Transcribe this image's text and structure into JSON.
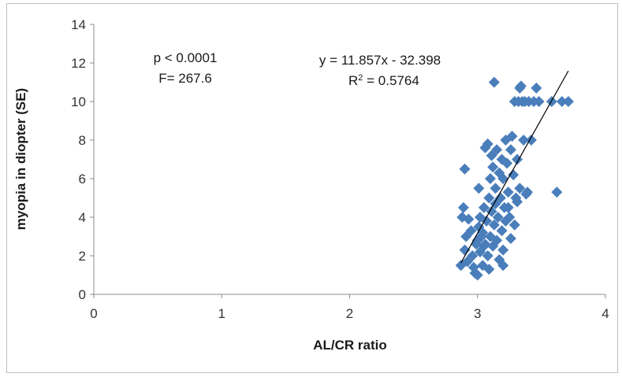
{
  "chart_data": {
    "type": "scatter",
    "title": "",
    "xlabel": "AL/CR ratio",
    "ylabel": "myopia in diopter  (SE)",
    "xlim": [
      0,
      4
    ],
    "ylim": [
      0,
      14
    ],
    "x_ticks": [
      0,
      1,
      2,
      3,
      4
    ],
    "y_ticks": [
      0,
      2,
      4,
      6,
      8,
      10,
      12,
      14
    ],
    "grid": false,
    "legend": "none",
    "marker": "diamond",
    "marker_color": "#4a7ebb",
    "trendline": {
      "slope": 11.857,
      "intercept": -32.398,
      "x_range": [
        2.87,
        3.71
      ],
      "color": "#000000"
    },
    "annotations": {
      "stats_line1": "p < 0.0001",
      "stats_line2": "F= 267.6",
      "equation": "y = 11.857x - 32.398",
      "r2_prefix": "R",
      "r2_sup": "2",
      "r2_suffix": " = 0.5764"
    },
    "points": [
      [
        2.87,
        1.5
      ],
      [
        2.88,
        4.0
      ],
      [
        2.89,
        4.5
      ],
      [
        2.9,
        6.5
      ],
      [
        2.9,
        2.3
      ],
      [
        2.91,
        3.0
      ],
      [
        2.92,
        1.7
      ],
      [
        2.93,
        3.9
      ],
      [
        2.95,
        3.3
      ],
      [
        2.96,
        2.0
      ],
      [
        2.97,
        1.4
      ],
      [
        2.98,
        1.1
      ],
      [
        2.99,
        2.6
      ],
      [
        3.0,
        1.0
      ],
      [
        3.01,
        5.5
      ],
      [
        3.01,
        3.5
      ],
      [
        3.02,
        4.0
      ],
      [
        3.02,
        2.2
      ],
      [
        3.03,
        3.0
      ],
      [
        3.04,
        1.5
      ],
      [
        3.05,
        2.5
      ],
      [
        3.05,
        4.5
      ],
      [
        3.06,
        7.6
      ],
      [
        3.07,
        3.8
      ],
      [
        3.08,
        2.0
      ],
      [
        3.08,
        7.8
      ],
      [
        3.09,
        1.3
      ],
      [
        3.09,
        5.0
      ],
      [
        3.1,
        6.0
      ],
      [
        3.1,
        3.0
      ],
      [
        3.11,
        4.3
      ],
      [
        3.11,
        7.2
      ],
      [
        3.12,
        2.5
      ],
      [
        3.12,
        6.6
      ],
      [
        3.13,
        11.0
      ],
      [
        3.13,
        3.6
      ],
      [
        3.14,
        5.5
      ],
      [
        3.15,
        7.5
      ],
      [
        3.15,
        2.8
      ],
      [
        3.16,
        4.0
      ],
      [
        3.17,
        6.3
      ],
      [
        3.17,
        1.8
      ],
      [
        3.18,
        5.0
      ],
      [
        3.19,
        7.0
      ],
      [
        3.19,
        3.3
      ],
      [
        3.2,
        2.3
      ],
      [
        3.2,
        6.0
      ],
      [
        3.2,
        1.5
      ],
      [
        3.21,
        4.5
      ],
      [
        3.22,
        8.0
      ],
      [
        3.22,
        3.8
      ],
      [
        3.23,
        6.8
      ],
      [
        3.24,
        5.3
      ],
      [
        3.25,
        4.0
      ],
      [
        3.26,
        7.5
      ],
      [
        3.26,
        2.9
      ],
      [
        3.27,
        8.2
      ],
      [
        3.28,
        6.2
      ],
      [
        3.29,
        3.6
      ],
      [
        3.29,
        10.0
      ],
      [
        3.3,
        5.0
      ],
      [
        3.31,
        7.0
      ],
      [
        3.31,
        4.8
      ],
      [
        3.32,
        10.0
      ],
      [
        3.33,
        5.5
      ],
      [
        3.33,
        10.7
      ],
      [
        3.34,
        10.8
      ],
      [
        3.35,
        10.0
      ],
      [
        3.36,
        8.0
      ],
      [
        3.37,
        10.0
      ],
      [
        3.38,
        5.2
      ],
      [
        3.39,
        5.3
      ],
      [
        3.4,
        10.0
      ],
      [
        3.42,
        8.0
      ],
      [
        3.44,
        10.0
      ],
      [
        3.46,
        10.7
      ],
      [
        3.48,
        10.0
      ],
      [
        3.58,
        10.0
      ],
      [
        3.62,
        5.3
      ],
      [
        3.66,
        10.0
      ],
      [
        3.71,
        10.0
      ],
      [
        3.0,
        2.8
      ],
      [
        3.04,
        3.2
      ],
      [
        3.14,
        4.7
      ],
      [
        3.24,
        4.5
      ],
      [
        3.06,
        2.6
      ]
    ]
  }
}
